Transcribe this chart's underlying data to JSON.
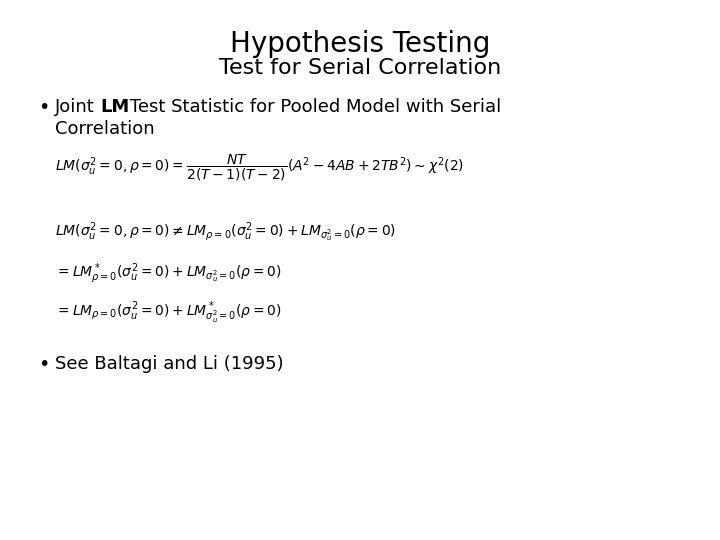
{
  "title_line1": "Hypothesis Testing",
  "title_line2": "Test for Serial Correlation",
  "title_fontsize": 20,
  "subtitle_fontsize": 16,
  "background_color": "#ffffff",
  "text_color": "#000000",
  "bullet2_text": "See Baltagi and Li (1995)",
  "eq_fontsize": 10,
  "body_fontsize": 13
}
